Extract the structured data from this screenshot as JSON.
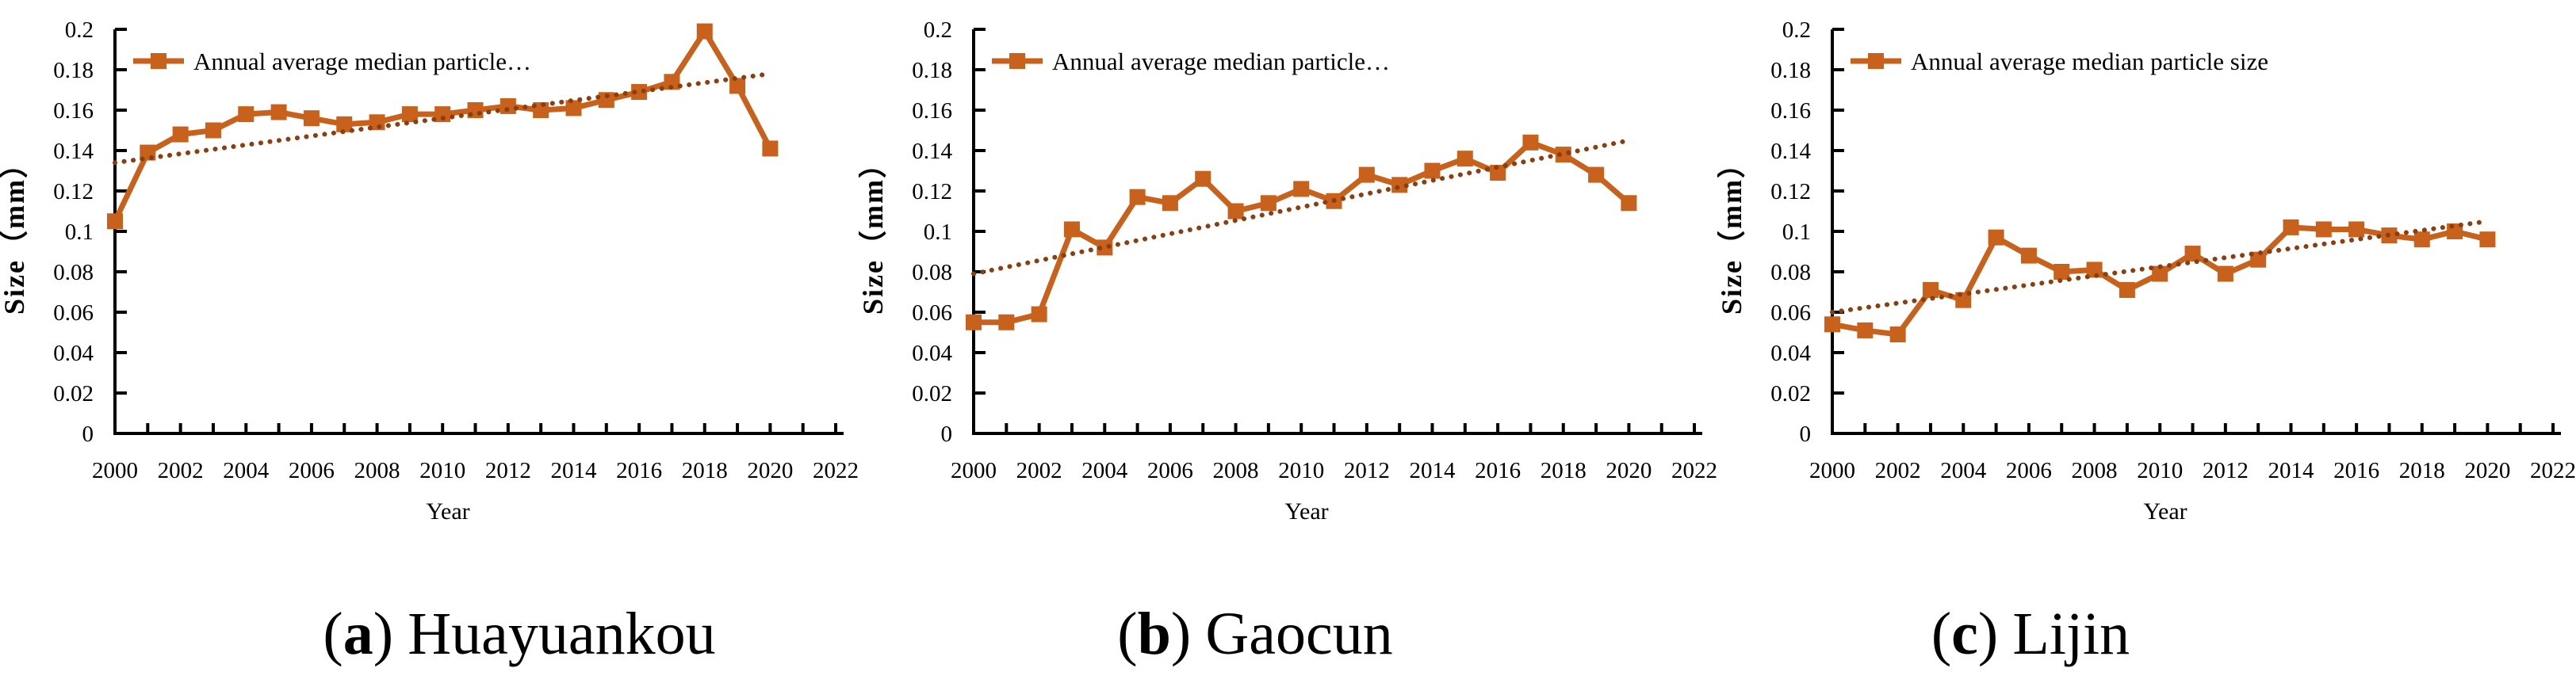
{
  "figure": {
    "background": "#ffffff",
    "colors": {
      "series": "#C8611C",
      "trendline": "#8B3E10",
      "axis": "#000000",
      "text": "#000000"
    },
    "paren_open": "(",
    "paren_close": ")",
    "xlabel": "Year",
    "ylabel": "Size（mm）",
    "x_tick_labels": [
      "2000",
      "2002",
      "2004",
      "2006",
      "2008",
      "2010",
      "2012",
      "2014",
      "2016",
      "2018",
      "2020",
      "2022"
    ],
    "y_tick_labels": [
      "0",
      "0.02",
      "0.04",
      "0.06",
      "0.08",
      "0.1",
      "0.12",
      "0.14",
      "0.16",
      "0.18",
      "0.2"
    ]
  },
  "chart_data": [
    {
      "type": "line",
      "station": "Huayuankou",
      "caption_letter": "a",
      "caption_name": "Huayuankou",
      "legend": "Annual average median particle…",
      "xlabel": "Year",
      "ylabel": "Size（mm）",
      "xlim": [
        2000,
        2022
      ],
      "ylim": [
        0,
        0.2
      ],
      "x_major_unit": 2,
      "y_major_unit": 0.02,
      "years": [
        2000,
        2001,
        2002,
        2003,
        2004,
        2005,
        2006,
        2007,
        2008,
        2009,
        2010,
        2011,
        2012,
        2013,
        2014,
        2015,
        2016,
        2017,
        2018,
        2019,
        2020
      ],
      "values": [
        0.105,
        0.139,
        0.148,
        0.15,
        0.158,
        0.159,
        0.156,
        0.153,
        0.154,
        0.158,
        0.158,
        0.16,
        0.162,
        0.16,
        0.161,
        0.165,
        0.169,
        0.174,
        0.199,
        0.172,
        0.141
      ],
      "trendline": {
        "style": "dotted",
        "x_start": 2000,
        "x_end": 2020,
        "start_value": 0.134,
        "end_value": 0.178
      }
    },
    {
      "type": "line",
      "station": "Gaocun",
      "caption_letter": "b",
      "caption_name": "Gaocun",
      "legend": "Annual average median particle…",
      "xlabel": "Year",
      "ylabel": "Size（mm）",
      "xlim": [
        2000,
        2022
      ],
      "ylim": [
        0,
        0.2
      ],
      "x_major_unit": 2,
      "y_major_unit": 0.02,
      "years": [
        2000,
        2001,
        2002,
        2003,
        2004,
        2005,
        2006,
        2007,
        2008,
        2009,
        2010,
        2011,
        2012,
        2013,
        2014,
        2015,
        2016,
        2017,
        2018,
        2019,
        2020
      ],
      "values": [
        0.055,
        0.055,
        0.059,
        0.101,
        0.092,
        0.117,
        0.114,
        0.126,
        0.11,
        0.114,
        0.121,
        0.115,
        0.128,
        0.123,
        0.13,
        0.136,
        0.129,
        0.144,
        0.138,
        0.128,
        0.114
      ],
      "trendline": {
        "style": "dotted",
        "x_start": 2000,
        "x_end": 2020,
        "start_value": 0.079,
        "end_value": 0.145
      }
    },
    {
      "type": "line",
      "station": "Lijin",
      "caption_letter": "c",
      "caption_name": "Lijin",
      "legend": "Annual average median particle size",
      "xlabel": "Year",
      "ylabel": "Size（mm）",
      "xlim": [
        2000,
        2022
      ],
      "ylim": [
        0,
        0.2
      ],
      "x_major_unit": 2,
      "y_major_unit": 0.02,
      "years": [
        2000,
        2001,
        2002,
        2003,
        2004,
        2005,
        2006,
        2007,
        2008,
        2009,
        2010,
        2011,
        2012,
        2013,
        2014,
        2015,
        2016,
        2017,
        2018,
        2019,
        2020
      ],
      "values": [
        0.054,
        0.051,
        0.049,
        0.071,
        0.066,
        0.097,
        0.088,
        0.08,
        0.081,
        0.071,
        0.079,
        0.089,
        0.079,
        0.086,
        0.102,
        0.101,
        0.101,
        0.098,
        0.096,
        0.1,
        0.096
      ],
      "trendline": {
        "style": "dotted",
        "x_start": 2000,
        "x_end": 2020,
        "start_value": 0.06,
        "end_value": 0.105
      }
    }
  ]
}
